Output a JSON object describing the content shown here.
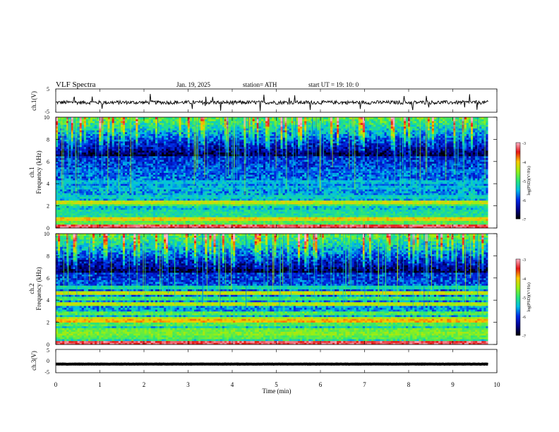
{
  "header": {
    "title": "VLF  Spectra",
    "date": "Jan.  19,  2025",
    "station": "station= ATH",
    "start_ut": "start  UT  =    19: 10: 0"
  },
  "chart_data": [
    {
      "type": "line",
      "name": "ch1-waveform",
      "ylabel": "ch.1(V)",
      "ylim": [
        -5,
        5
      ],
      "yticks": [
        "5",
        "-5"
      ],
      "xlim": [
        0,
        10
      ],
      "x_end": 9.8,
      "baseline": -0.8,
      "color": "#000000"
    },
    {
      "type": "heatmap",
      "name": "ch1-spectrogram",
      "ylabel_top": "ch.1",
      "ylabel": "Frequency  (kHz)",
      "ylim": [
        0,
        10
      ],
      "yticks": [
        "0",
        "2",
        "4",
        "6",
        "8",
        "10"
      ],
      "xlim": [
        0,
        10
      ],
      "x_end": 9.8,
      "bands": [
        {
          "f": 0.15,
          "level": -3.3
        },
        {
          "f": 0.5,
          "level": -4.8
        },
        {
          "f": 0.9,
          "level": -4.1
        },
        {
          "f": 1.1,
          "level": -5.2
        },
        {
          "f": 1.5,
          "level": -5.3
        },
        {
          "f": 2.1,
          "level": -4.9
        },
        {
          "f": 2.3,
          "level": -4.3
        },
        {
          "f": 2.9,
          "level": -5.4
        },
        {
          "f": 3.6,
          "level": -5.6
        },
        {
          "f": 4.2,
          "level": -5.5
        },
        {
          "f": 5.1,
          "level": -5.9
        }
      ],
      "colorbar": {
        "label": "log(PSD)(V²/Hz)",
        "range": [
          -7,
          -3
        ],
        "ticks": [
          "-3",
          "-4",
          "-5",
          "-6",
          "-7"
        ]
      }
    },
    {
      "type": "heatmap",
      "name": "ch2-spectrogram",
      "ylabel_top": "ch.2",
      "ylabel": "Frequency  (kHz)",
      "ylim": [
        0,
        10
      ],
      "yticks": [
        "0",
        "2",
        "4",
        "6",
        "8",
        "10"
      ],
      "xlim": [
        0,
        10
      ],
      "x_end": 9.8,
      "bands": [
        {
          "f": 0.15,
          "level": -3.3
        },
        {
          "f": 0.6,
          "level": -4.8
        },
        {
          "f": 1.0,
          "level": -4.6
        },
        {
          "f": 1.4,
          "level": -4.7
        },
        {
          "f": 1.8,
          "level": -4.8
        },
        {
          "f": 2.1,
          "level": -4.0
        },
        {
          "f": 2.3,
          "level": -4.4
        },
        {
          "f": 2.9,
          "level": -4.8
        },
        {
          "f": 3.6,
          "level": -4.4
        },
        {
          "f": 4.2,
          "level": -4.9
        },
        {
          "f": 4.7,
          "level": -4.3
        },
        {
          "f": 5.1,
          "level": -5.2
        }
      ],
      "colorbar": {
        "label": "log(PSD)(V²/Hz)",
        "range": [
          -7,
          -3
        ],
        "ticks": [
          "-3",
          "-4",
          "-5",
          "-6",
          "-7"
        ]
      }
    },
    {
      "type": "line",
      "name": "ch3-waveform",
      "ylabel": "ch.3(V)",
      "ylim": [
        -5,
        5
      ],
      "yticks": [
        "5",
        "0",
        "-5"
      ],
      "xlim": [
        0,
        10
      ],
      "x_end": 9.8,
      "baseline": -1.3,
      "color": "#000000"
    }
  ],
  "xaxis": {
    "label": "Time  (min)",
    "ticks": [
      "0",
      "1",
      "2",
      "3",
      "4",
      "5",
      "6",
      "7",
      "8",
      "9",
      "10"
    ]
  }
}
